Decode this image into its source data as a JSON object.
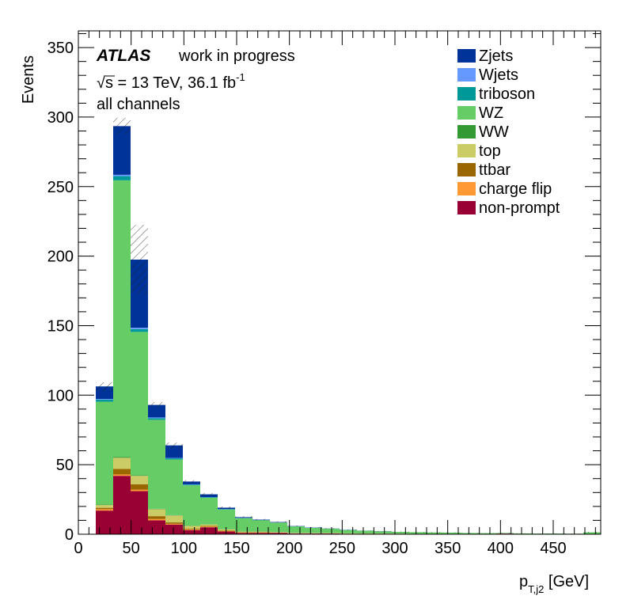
{
  "chart_data": {
    "type": "bar",
    "stacked": true,
    "xlabel": "p",
    "xlabel_sub": "T,j2",
    "xlabel_unit": " [GeV]",
    "ylabel": "Events",
    "xlim": [
      0,
      495
    ],
    "ylim": [
      0,
      362
    ],
    "x_ticks": [
      0,
      50,
      100,
      150,
      200,
      250,
      300,
      350,
      400,
      450
    ],
    "y_ticks": [
      0,
      50,
      100,
      150,
      200,
      250,
      300,
      350
    ],
    "bin_width": 16.5,
    "x": [
      24.75,
      41.25,
      57.75,
      74.25,
      90.75,
      107.25,
      123.75,
      140.25,
      156.75,
      173.25,
      189.75,
      206.25,
      222.75,
      239.25,
      255.75,
      272.25,
      288.75,
      305.25,
      321.75,
      338.25,
      354.75,
      371.25,
      387.75,
      404.25,
      420.75,
      437.25,
      453.75,
      470.25,
      486.75
    ],
    "legend_position": "top-right",
    "series": [
      {
        "name": "non-prompt",
        "color": "#990033",
        "values": [
          17,
          42,
          31,
          10,
          7,
          3,
          5,
          2,
          1,
          1,
          1,
          0.5,
          0.5,
          0.5,
          0.3,
          0.3,
          0.3,
          0.2,
          0.2,
          0.2,
          0.2,
          0.1,
          0.1,
          0.5,
          0.1,
          0.1,
          0.1,
          0.1,
          0.1
        ]
      },
      {
        "name": "charge flip",
        "color": "#ff9933",
        "values": [
          1,
          1,
          1,
          1,
          0.5,
          0.5,
          0.5,
          0.3,
          0.2,
          0.2,
          0.1,
          0.1,
          0.1,
          0.1,
          0.1,
          0.1,
          0.1,
          0.1,
          0,
          0,
          0,
          0,
          0,
          0,
          0,
          0,
          0,
          0,
          0
        ]
      },
      {
        "name": "ttbar",
        "color": "#996600",
        "values": [
          1,
          4,
          4,
          2,
          1,
          0.5,
          0.5,
          0.3,
          0.2,
          0.2,
          0.1,
          0.1,
          0.1,
          0.1,
          0.1,
          0.1,
          0,
          0,
          0,
          0,
          0,
          0,
          0,
          0,
          0,
          0,
          0,
          0,
          0
        ]
      },
      {
        "name": "top",
        "color": "#cccc66",
        "values": [
          2,
          8,
          6,
          5,
          5,
          2,
          1,
          1,
          0.5,
          0.5,
          0.3,
          0.3,
          0.2,
          0.2,
          0.2,
          0.1,
          0.1,
          0.1,
          0.1,
          0.1,
          0.1,
          0,
          0,
          0,
          0,
          0,
          0,
          0,
          0
        ]
      },
      {
        "name": "WW",
        "color": "#339933",
        "values": [
          0.3,
          0.5,
          0.5,
          0.3,
          0.3,
          0.2,
          0.2,
          0.1,
          0.1,
          0.1,
          0.1,
          0.1,
          0.1,
          0,
          0,
          0,
          0,
          0,
          0,
          0,
          0,
          0,
          0,
          0,
          0,
          0,
          0,
          0,
          0
        ]
      },
      {
        "name": "WZ",
        "color": "#66cc66",
        "values": [
          74,
          199,
          103,
          64,
          40,
          29,
          19,
          14,
          9.5,
          8,
          6.8,
          4.5,
          3.5,
          3,
          2.3,
          1.9,
          1.6,
          1.3,
          1.2,
          1,
          0.9,
          0.8,
          0.7,
          0.4,
          0.5,
          0.4,
          0.4,
          0.3,
          1.3
        ]
      },
      {
        "name": "triboson",
        "color": "#009999",
        "values": [
          1.5,
          3,
          2,
          1.2,
          0.8,
          0.5,
          0.4,
          0.3,
          0.2,
          0.2,
          0.1,
          0.1,
          0.1,
          0.1,
          0.1,
          0,
          0,
          0,
          0,
          0,
          0,
          0,
          0,
          0,
          0,
          0,
          0,
          0,
          0
        ]
      },
      {
        "name": "Wjets",
        "color": "#6699ff",
        "values": [
          0.5,
          1,
          1,
          0.5,
          0.3,
          0.2,
          0.1,
          0.1,
          0.1,
          0,
          0,
          0,
          0,
          0,
          0,
          0,
          0,
          0,
          0,
          0,
          0,
          0,
          0,
          0,
          0,
          0,
          0,
          0,
          0
        ]
      },
      {
        "name": "Zjets",
        "color": "#003399",
        "values": [
          9,
          35,
          49,
          9,
          9,
          2,
          2,
          1,
          0.5,
          0.3,
          0.3,
          0.2,
          0.2,
          0.1,
          0.1,
          0.1,
          0.1,
          0,
          0,
          0,
          0,
          0,
          0,
          0,
          0,
          0,
          0,
          0,
          0
        ]
      }
    ],
    "uncertainty": [
      3,
      6,
      25,
      2,
      2,
      1,
      1,
      0.8,
      0.6,
      0.5,
      0.4,
      0.4,
      0.3,
      0.3,
      0.3,
      0.2,
      0.2,
      0.2,
      0.2,
      0.2,
      0.2,
      0.1,
      0.1,
      0.2,
      0.1,
      0.1,
      0.1,
      0.1,
      0.3
    ]
  },
  "annotations": {
    "atlas": "ATLAS",
    "status": "work in progress",
    "sqrt_symbol": "√",
    "energy_text": "s = 13 TeV, 36.1 fb",
    "energy_sup": "-1",
    "channel": "all channels"
  }
}
